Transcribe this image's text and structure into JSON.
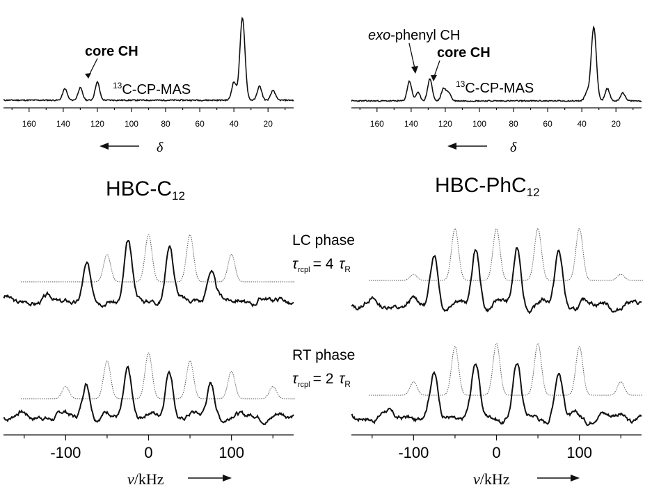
{
  "titles": {
    "left": {
      "main": "HBC-C",
      "sub": "12"
    },
    "right": {
      "main": "HBC-PhC",
      "sub": "12"
    }
  },
  "annotations": {
    "core_ch": "core CH",
    "exo_phenyl_prefix": "exo",
    "exo_phenyl_rest": "-phenyl CH",
    "cpmas_sup": "13",
    "cpmas_rest": "C-CP-MAS",
    "delta": "δ"
  },
  "phases": {
    "lc": {
      "name": "LC phase",
      "tau": "τ",
      "sub": "rcpl",
      "eq": "= 4",
      "tau_r": "τ",
      "sub_r": "R"
    },
    "rt": {
      "name": "RT phase",
      "tau": "τ",
      "sub": "rcpl",
      "eq": "= 2",
      "tau_r": "τ",
      "sub_r": "R"
    }
  },
  "axes": {
    "top_ticks": [
      "160",
      "140",
      "120",
      "100",
      "80",
      "60",
      "40",
      "20"
    ],
    "bottom_ticks": [
      "-100",
      "0",
      "100"
    ],
    "bottom_unit_nu": "ν",
    "bottom_unit_rest": "/kHz"
  },
  "chart_data": [
    {
      "type": "line",
      "panel": "top-left",
      "xlabel": "δ",
      "xlim": [
        175,
        5
      ],
      "x_direction": "reversed",
      "series": [
        {
          "peaks_x": [
            139,
            130,
            120,
            40,
            35,
            25,
            17
          ],
          "peaks_y": [
            0.14,
            0.15,
            0.22,
            0.22,
            1.0,
            0.17,
            0.12
          ]
        }
      ],
      "annotations": [
        "core CH",
        "13C-CP-MAS"
      ]
    },
    {
      "type": "line",
      "panel": "top-right",
      "xlabel": "δ",
      "xlim": [
        175,
        5
      ],
      "x_direction": "reversed",
      "series": [
        {
          "peaks_x": [
            141,
            136,
            129,
            121,
            118,
            37,
            33,
            25,
            16
          ],
          "peaks_y": [
            0.24,
            0.1,
            0.27,
            0.15,
            0.1,
            0.1,
            0.9,
            0.15,
            0.1
          ]
        }
      ],
      "annotations": [
        "exo-phenyl CH",
        "core CH",
        "13C-CP-MAS"
      ]
    },
    {
      "type": "line",
      "panel": "left-LC",
      "xlabel": "ν/kHz",
      "xlim": [
        -175,
        175
      ],
      "series": [
        {
          "peaks_x": [
            -50,
            0,
            50,
            100
          ],
          "peaks_y": [
            0.45,
            0.77,
            0.77,
            0.45
          ]
        },
        {
          "peaks_x": [
            -75,
            -25,
            25,
            75
          ],
          "peaks_y": [
            0.55,
            0.95,
            0.95,
            0.55
          ]
        }
      ]
    },
    {
      "type": "line",
      "panel": "left-RT",
      "xlabel": "ν/kHz",
      "xlim": [
        -175,
        175
      ],
      "series": [
        {
          "peaks_x": [
            -100,
            -50,
            0,
            50,
            100,
            150
          ],
          "peaks_y": [
            0.2,
            0.62,
            0.75,
            0.62,
            0.45,
            0.2
          ]
        },
        {
          "peaks_x": [
            -75,
            -25,
            25,
            75
          ],
          "peaks_y": [
            0.55,
            0.75,
            0.75,
            0.5
          ]
        }
      ]
    },
    {
      "type": "line",
      "panel": "right-LC",
      "xlabel": "ν/kHz",
      "xlim": [
        -175,
        175
      ],
      "series": [
        {
          "peaks_x": [
            -100,
            -50,
            0,
            50,
            100,
            150
          ],
          "peaks_y": [
            0.1,
            0.85,
            0.85,
            0.85,
            0.85,
            0.1
          ]
        },
        {
          "peaks_x": [
            -75,
            -25,
            25,
            75
          ],
          "peaks_y": [
            0.85,
            0.9,
            0.9,
            0.85
          ]
        }
      ]
    },
    {
      "type": "line",
      "panel": "right-RT",
      "xlabel": "ν/kHz",
      "xlim": [
        -175,
        175
      ],
      "series": [
        {
          "peaks_x": [
            -100,
            -50,
            0,
            50,
            100,
            150
          ],
          "peaks_y": [
            0.22,
            0.8,
            0.85,
            0.85,
            0.8,
            0.22
          ]
        },
        {
          "peaks_x": [
            -75,
            -25,
            25,
            75
          ],
          "peaks_y": [
            0.65,
            0.8,
            0.8,
            0.65
          ]
        }
      ]
    }
  ]
}
